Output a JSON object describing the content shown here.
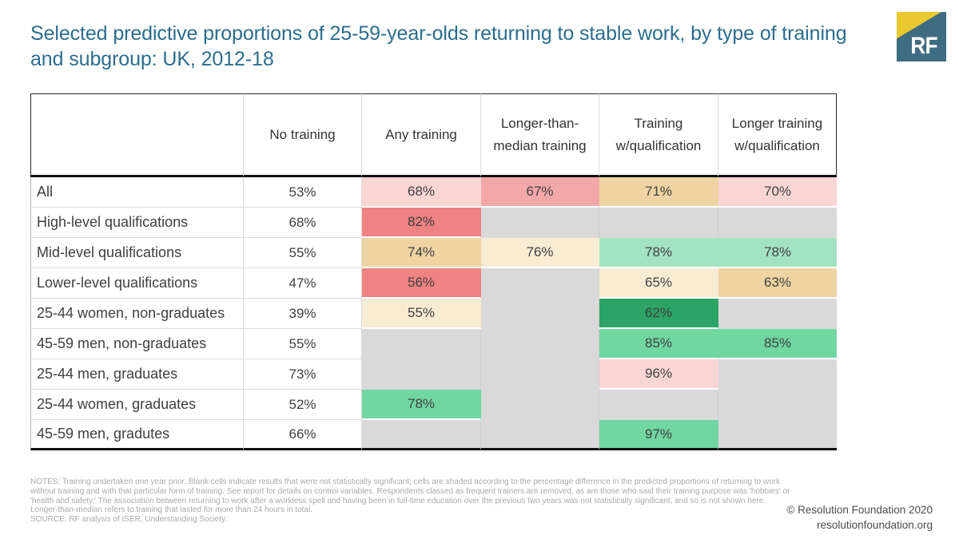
{
  "title": "Selected predictive proportions of 25-59-year-olds returning to stable work, by type of training and subgroup: UK, 2012-18",
  "title_color": "#2b6d8e",
  "logo": {
    "text": "RF",
    "teal": "#3e6c80",
    "yellow": "#e9c832"
  },
  "chart_data": {
    "type": "table",
    "title": "Selected predictive proportions of 25-59-year-olds returning to stable work, by type of training and subgroup: UK, 2012-18",
    "columns": [
      "",
      "No training",
      "Any training",
      "Longer-than-median training",
      "Training w/qualification",
      "Longer training w/qualification"
    ],
    "rows": [
      {
        "label": "All",
        "cells": [
          {
            "v": "53%",
            "c": "none"
          },
          {
            "v": "68%",
            "c": "pink1"
          },
          {
            "v": "67%",
            "c": "pink2"
          },
          {
            "v": "71%",
            "c": "tan"
          },
          {
            "v": "70%",
            "c": "pink1"
          }
        ]
      },
      {
        "label": "High-level qualifications",
        "cells": [
          {
            "v": "68%",
            "c": "none"
          },
          {
            "v": "82%",
            "c": "red"
          },
          {
            "v": "",
            "c": "blank"
          },
          {
            "v": "",
            "c": "blank"
          },
          {
            "v": "",
            "c": "blank"
          }
        ]
      },
      {
        "label": "Mid-level qualifications",
        "cells": [
          {
            "v": "55%",
            "c": "none"
          },
          {
            "v": "74%",
            "c": "tan"
          },
          {
            "v": "76%",
            "c": "cream"
          },
          {
            "v": "78%",
            "c": "green1"
          },
          {
            "v": "78%",
            "c": "green1"
          }
        ]
      },
      {
        "label": "Lower-level qualifications",
        "cells": [
          {
            "v": "47%",
            "c": "none"
          },
          {
            "v": "56%",
            "c": "red"
          },
          {
            "v": "",
            "c": "blank"
          },
          {
            "v": "65%",
            "c": "cream"
          },
          {
            "v": "63%",
            "c": "tan"
          }
        ]
      },
      {
        "label": "25-44 women, non-graduates",
        "cells": [
          {
            "v": "39%",
            "c": "none"
          },
          {
            "v": "55%",
            "c": "cream"
          },
          {
            "v": "",
            "c": "blank"
          },
          {
            "v": "62%",
            "c": "green3"
          },
          {
            "v": "",
            "c": "blank"
          }
        ]
      },
      {
        "label": "45-59 men, non-graduates",
        "cells": [
          {
            "v": "55%",
            "c": "none"
          },
          {
            "v": "",
            "c": "blank"
          },
          {
            "v": "",
            "c": "blank"
          },
          {
            "v": "85%",
            "c": "green2"
          },
          {
            "v": "85%",
            "c": "green2"
          }
        ]
      },
      {
        "label": "25-44 men, graduates",
        "cells": [
          {
            "v": "73%",
            "c": "none"
          },
          {
            "v": "",
            "c": "blank"
          },
          {
            "v": "",
            "c": "blank"
          },
          {
            "v": "96%",
            "c": "pink1"
          },
          {
            "v": "",
            "c": "blank"
          }
        ]
      },
      {
        "label": "25-44 women, graduates",
        "cells": [
          {
            "v": "52%",
            "c": "none"
          },
          {
            "v": "78%",
            "c": "green2"
          },
          {
            "v": "",
            "c": "blank"
          },
          {
            "v": "",
            "c": "blank"
          },
          {
            "v": "",
            "c": "blank"
          }
        ]
      },
      {
        "label": "45-59 men, gradutes",
        "cells": [
          {
            "v": "66%",
            "c": "none"
          },
          {
            "v": "",
            "c": "blank"
          },
          {
            "v": "",
            "c": "blank"
          },
          {
            "v": "97%",
            "c": "green2"
          },
          {
            "v": "",
            "c": "blank"
          }
        ]
      }
    ],
    "palette": {
      "none": "#ffffff",
      "blank": "#d9d9d9",
      "pink1": "#f9d6d4",
      "pink2": "#f3a8a8",
      "red": "#ef8282",
      "tan": "#eed4a3",
      "cream": "#f8ecd2",
      "green1": "#a3e3c2",
      "green2": "#70d6a2",
      "green3": "#2ca467"
    }
  },
  "footer": {
    "notes": "NOTES: Training undertaken one year prior. Blank cells indicate results that were not statistically significant; cells are shaded according to the percentage difference in the predicted proportions of returning to work without training and with that particular form of training.  See report for details on control variables. Respondents classed as frequent trainers are removed, as are those who said their training purpose was 'hobbies' or 'health and safety.' The association between returning to work after a workless spell and having been in full-time education over the previous two years was not statistically significant, and so is not shown here.  Longer-than-median refers to training that lasted for more than 24 hours in total.",
    "source": "SOURCE: RF analysis of ISER, Understanding Society.",
    "copyright": "© Resolution Foundation 2020",
    "website": "resolutionfoundation.org"
  }
}
